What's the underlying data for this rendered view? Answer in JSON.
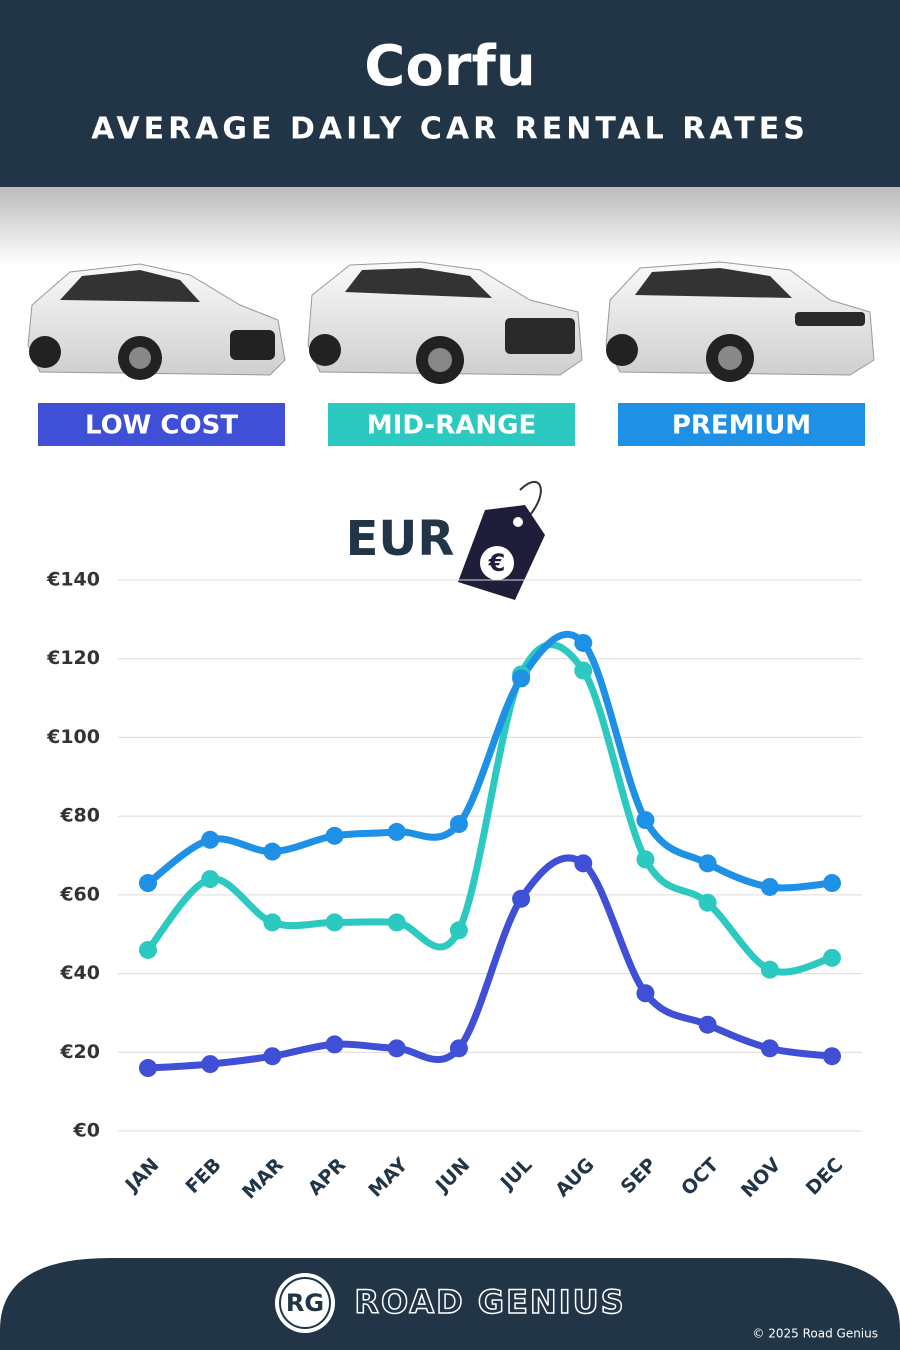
{
  "chart_data": {
    "type": "line",
    "title": "Corfu",
    "subtitle": "AVERAGE DAILY CAR RENTAL RATES",
    "currency": "EUR",
    "tag_symbol": "€",
    "categories": [
      "JAN",
      "FEB",
      "MAR",
      "APR",
      "MAY",
      "JUN",
      "JUL",
      "AUG",
      "SEP",
      "OCT",
      "NOV",
      "DEC"
    ],
    "series": [
      {
        "name": "LOW COST",
        "color": "#3f4fd6",
        "values": [
          16,
          17,
          19,
          22,
          21,
          21,
          59,
          68,
          35,
          27,
          21,
          19
        ]
      },
      {
        "name": "MID-RANGE",
        "color": "#2bc9c0",
        "values": [
          46,
          64,
          53,
          53,
          53,
          51,
          116,
          117,
          69,
          58,
          41,
          44
        ]
      },
      {
        "name": "PREMIUM",
        "color": "#1e90e6",
        "values": [
          63,
          74,
          71,
          75,
          76,
          78,
          115,
          124,
          79,
          68,
          62,
          63
        ]
      }
    ],
    "ylim": [
      0,
      140
    ],
    "yticks": [
      {
        "value": 0,
        "label": "€0"
      },
      {
        "value": 20,
        "label": "€20"
      },
      {
        "value": 40,
        "label": "€40"
      },
      {
        "value": 60,
        "label": "€60"
      },
      {
        "value": 80,
        "label": "€80"
      },
      {
        "value": 100,
        "label": "€100"
      },
      {
        "value": 120,
        "label": "€120"
      },
      {
        "value": 140,
        "label": "€140"
      }
    ],
    "grid": true
  },
  "footer": {
    "logo": "RG",
    "brand": "ROAD GENIUS",
    "copyright": "© 2025 Road Genius"
  }
}
